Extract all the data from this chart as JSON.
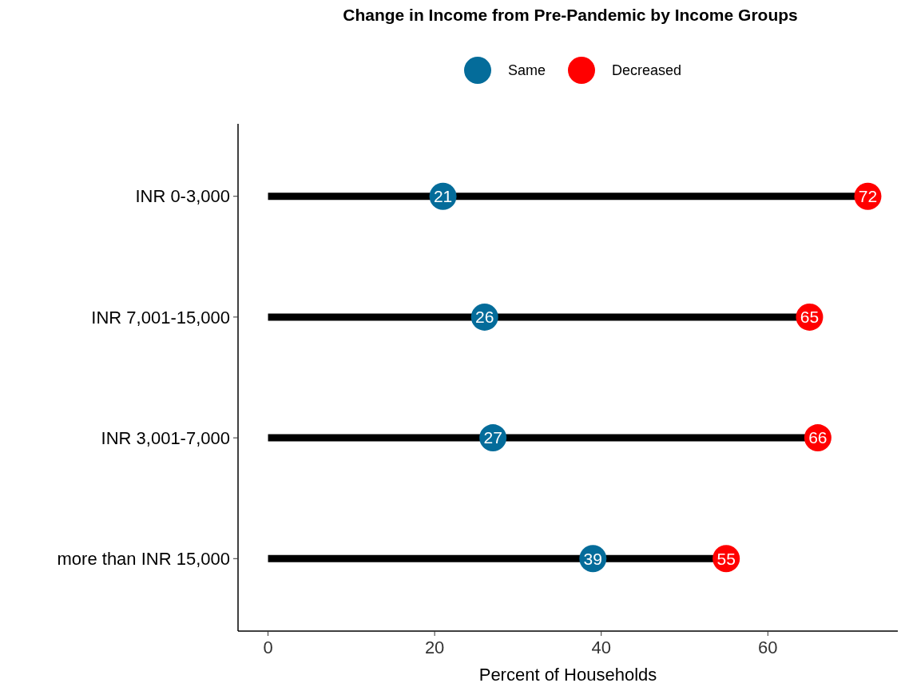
{
  "chart_data": {
    "type": "lollipop",
    "orientation": "horizontal",
    "title": "Change in Income from Pre-Pandemic by Income Groups",
    "xlabel": "Percent of Households",
    "categories": [
      "INR 0-3,000",
      "INR 7,001-15,000",
      "INR 3,001-7,000",
      "more than INR 15,000"
    ],
    "series": [
      {
        "name": "Same",
        "type": "scatter",
        "color": "#046c9a",
        "values": [
          21,
          26,
          27,
          39
        ]
      },
      {
        "name": "Decreased",
        "type": "lollipop",
        "color": "#ff0000",
        "values": [
          72,
          65,
          66,
          55
        ]
      }
    ],
    "xlim": [
      -3.6,
      75.6
    ],
    "xticks": [
      0,
      20,
      40,
      60
    ],
    "grid": false,
    "legend": "top",
    "marker": "circle",
    "data_labels": true
  }
}
